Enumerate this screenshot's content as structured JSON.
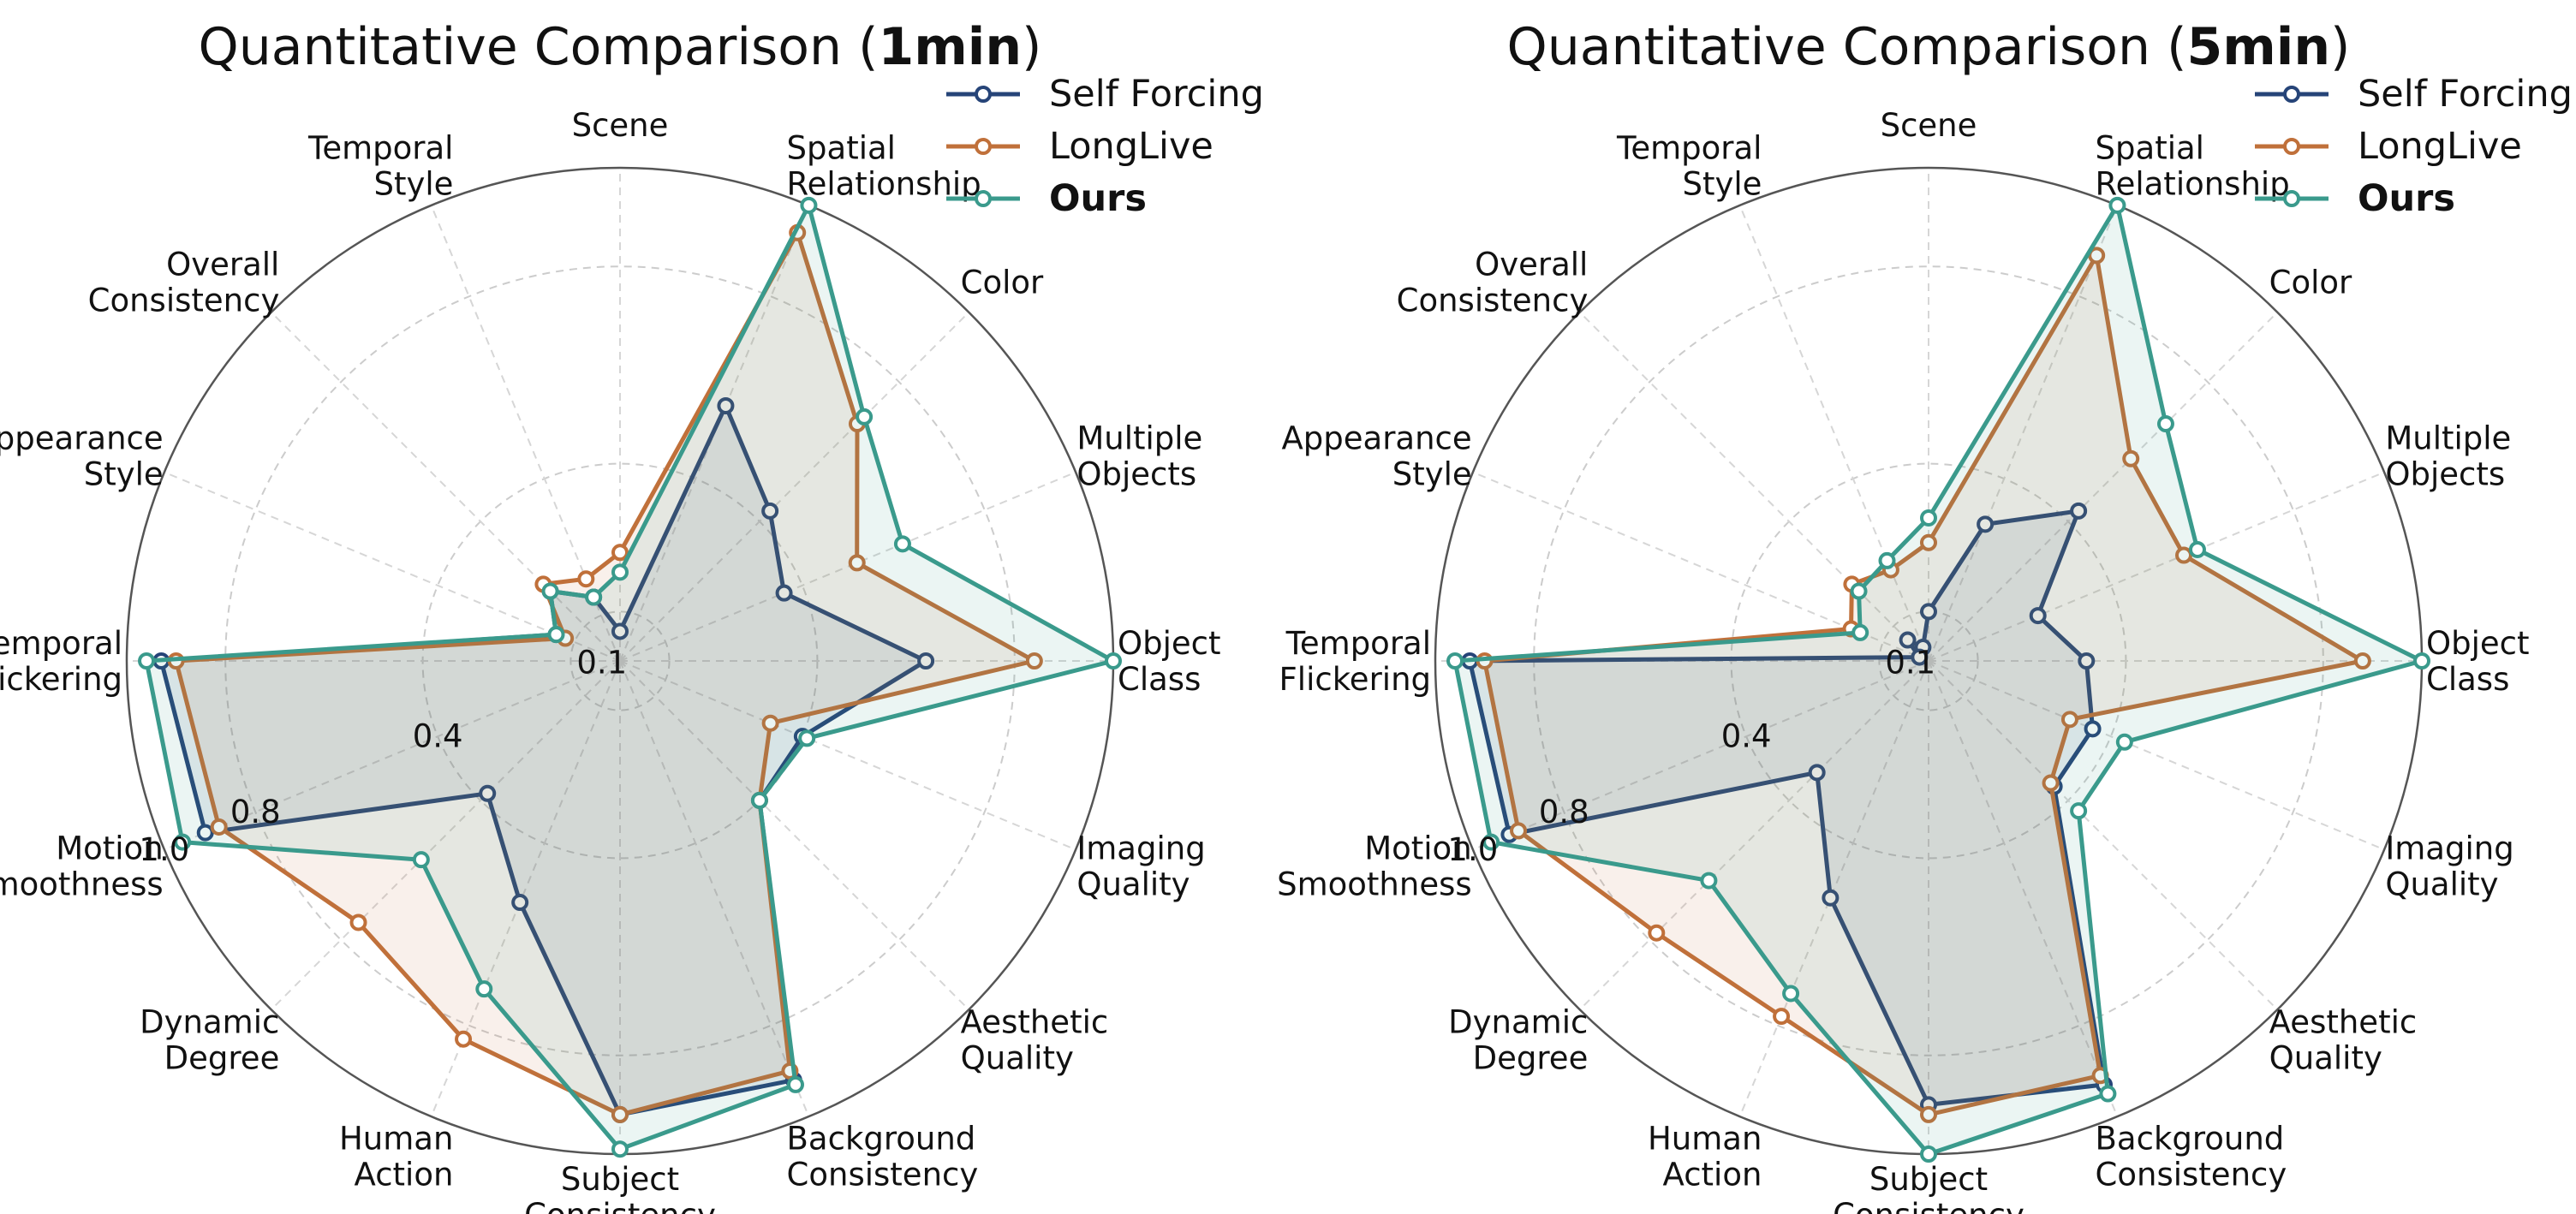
{
  "colors": {
    "Self Forcing": "#264478",
    "LongLive": "#c0703a",
    "Ours": "#3a9a8c"
  },
  "chart_data": [
    {
      "type": "radar",
      "title_prefix": "Quantitative Comparison (",
      "title_bold": "1min",
      "title_suffix": ")",
      "axes": [
        "Object Class",
        "Multiple Objects",
        "Color",
        "Spatial Relationship",
        "Scene",
        "Temporal Style",
        "Overall Consistency",
        "Appearance Style",
        "Temporal Flickering",
        "Motion Smoothness",
        "Dynamic Degree",
        "Human Action",
        "Subject Consistency",
        "Background Consistency",
        "Aesthetic Quality",
        "Imaging Quality"
      ],
      "axis_label_lines": [
        [
          "Object",
          "Class"
        ],
        [
          "Multiple",
          "Objects"
        ],
        [
          "Color"
        ],
        [
          "Spatial",
          "Relationship"
        ],
        [
          "Scene"
        ],
        [
          "Temporal",
          "Style"
        ],
        [
          "Overall",
          "Consistency"
        ],
        [
          "Appearance",
          "Style"
        ],
        [
          "Temporal",
          "Flickering"
        ],
        [
          "Motion",
          "Smoothness"
        ],
        [
          "Dynamic",
          "Degree"
        ],
        [
          "Human",
          "Action"
        ],
        [
          "Subject",
          "Consistency"
        ],
        [
          "Background",
          "Consistency"
        ],
        [
          "Aesthetic",
          "Quality"
        ],
        [
          "Imaging",
          "Quality"
        ]
      ],
      "radial_ticks": [
        "0.1",
        "0.4",
        "0.8",
        "1.0"
      ],
      "grid": true,
      "legend_position": "top-right",
      "series": [
        {
          "name": "Self Forcing",
          "values": [
            0.62,
            0.36,
            0.43,
            0.56,
            0.06,
            0.14,
            0.2,
            0.14,
            0.93,
            0.91,
            0.38,
            0.53,
            0.92,
            0.92,
            0.4,
            0.4
          ]
        },
        {
          "name": "LongLive",
          "values": [
            0.84,
            0.52,
            0.68,
            0.94,
            0.22,
            0.18,
            0.22,
            0.12,
            0.9,
            0.88,
            0.75,
            0.83,
            0.92,
            0.9,
            0.4,
            0.33
          ]
        },
        {
          "name": "Ours",
          "values": [
            1.0,
            0.62,
            0.7,
            1.0,
            0.18,
            0.14,
            0.2,
            0.14,
            0.96,
            0.96,
            0.57,
            0.72,
            0.99,
            0.93,
            0.4,
            0.41
          ]
        }
      ]
    },
    {
      "type": "radar",
      "title_prefix": "Quantitative Comparison (",
      "title_bold": "5min",
      "title_suffix": ")",
      "axes": [
        "Object Class",
        "Multiple Objects",
        "Color",
        "Spatial Relationship",
        "Scene",
        "Temporal Style",
        "Overall Consistency",
        "Appearance Style",
        "Temporal Flickering",
        "Motion Smoothness",
        "Dynamic Degree",
        "Human Action",
        "Subject Consistency",
        "Background Consistency",
        "Aesthetic Quality",
        "Imaging Quality"
      ],
      "axis_label_lines": [
        [
          "Object",
          "Class"
        ],
        [
          "Multiple",
          "Objects"
        ],
        [
          "Color"
        ],
        [
          "Spatial",
          "Relationship"
        ],
        [
          "Scene"
        ],
        [
          "Temporal",
          "Style"
        ],
        [
          "Overall",
          "Consistency"
        ],
        [
          "Appearance",
          "Style"
        ],
        [
          "Temporal",
          "Flickering"
        ],
        [
          "Motion",
          "Smoothness"
        ],
        [
          "Dynamic",
          "Degree"
        ],
        [
          "Human",
          "Action"
        ],
        [
          "Subject",
          "Consistency"
        ],
        [
          "Background",
          "Consistency"
        ],
        [
          "Aesthetic",
          "Quality"
        ],
        [
          "Imaging",
          "Quality"
        ]
      ],
      "radial_ticks": [
        "0.1",
        "0.4",
        "0.8",
        "1.0"
      ],
      "grid": true,
      "legend_position": "top-right",
      "series": [
        {
          "name": "Self Forcing",
          "values": [
            0.32,
            0.24,
            0.43,
            0.3,
            0.1,
            0.03,
            0.06,
            0.02,
            0.93,
            0.92,
            0.32,
            0.52,
            0.9,
            0.93,
            0.36,
            0.36
          ]
        },
        {
          "name": "LongLive",
          "values": [
            0.88,
            0.56,
            0.58,
            0.89,
            0.24,
            0.2,
            0.22,
            0.17,
            0.9,
            0.9,
            0.78,
            0.78,
            0.92,
            0.91,
            0.35,
            0.31
          ]
        },
        {
          "name": "Ours",
          "values": [
            1.0,
            0.59,
            0.68,
            1.0,
            0.29,
            0.22,
            0.2,
            0.15,
            0.96,
            0.96,
            0.63,
            0.73,
            1.0,
            0.95,
            0.43,
            0.43
          ]
        }
      ]
    }
  ]
}
